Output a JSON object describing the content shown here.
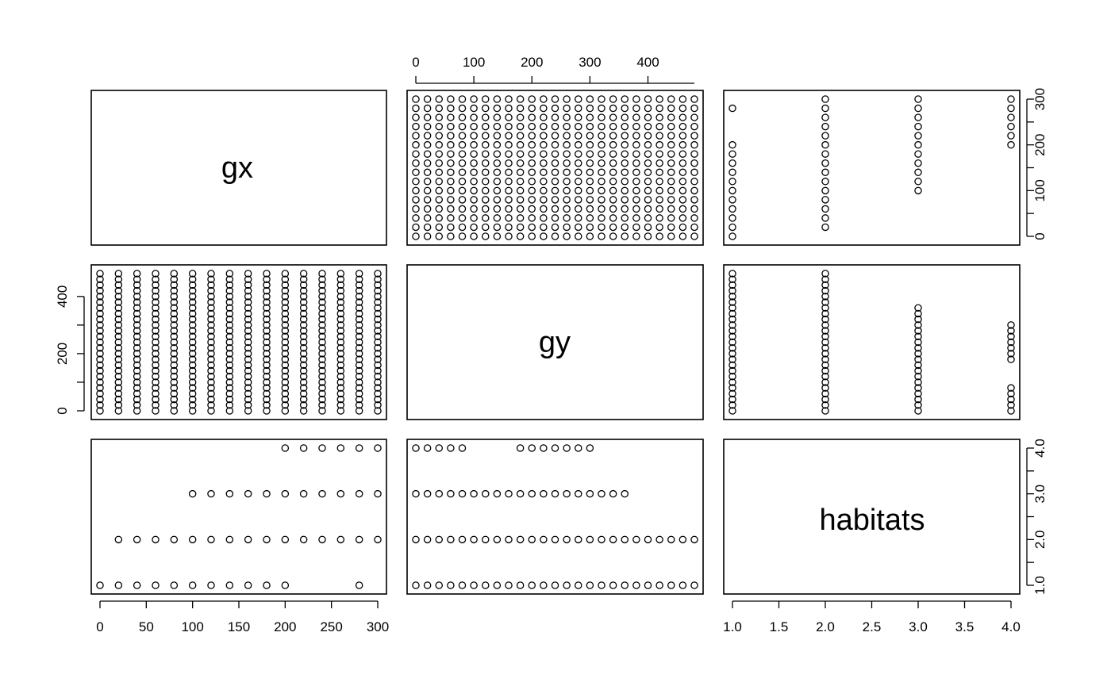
{
  "chart_data": {
    "type": "scatter",
    "variables": [
      "gx",
      "gy",
      "habitats"
    ],
    "ranges": {
      "gx": [
        0,
        300
      ],
      "gy": [
        0,
        480
      ],
      "habitats": [
        1,
        4
      ]
    },
    "ticks": {
      "gx": [
        "0",
        "50",
        "100",
        "150",
        "200",
        "250",
        "300"
      ],
      "gy": [
        "0",
        "100",
        "200",
        "300",
        "400"
      ],
      "gy_left": [
        "0",
        "200",
        "400"
      ],
      "habitats_bottom": [
        "1.0",
        "1.5",
        "2.0",
        "2.5",
        "3.0",
        "3.5",
        "4.0"
      ],
      "habitats_right": [
        "1.0",
        "2.0",
        "3.0",
        "4.0"
      ],
      "gx_right": [
        "0",
        "100",
        "200",
        "300"
      ]
    },
    "data": {
      "grid_gx": [
        0,
        20,
        40,
        60,
        80,
        100,
        120,
        140,
        160,
        180,
        200,
        220,
        240,
        260,
        280,
        300
      ],
      "grid_gy": [
        0,
        20,
        40,
        60,
        80,
        100,
        120,
        140,
        160,
        180,
        200,
        220,
        240,
        260,
        280,
        300,
        320,
        340,
        360,
        380,
        400,
        420,
        440,
        460,
        480
      ],
      "habitat_by_gx": [
        {
          "habitat": 1,
          "gx": [
            0,
            20,
            40,
            60,
            80,
            100,
            120,
            140,
            160,
            180,
            200,
            280
          ]
        },
        {
          "habitat": 2,
          "gx": [
            20,
            40,
            60,
            80,
            100,
            120,
            140,
            160,
            180,
            200,
            220,
            240,
            260,
            280,
            300
          ]
        },
        {
          "habitat": 3,
          "gx": [
            100,
            120,
            140,
            160,
            180,
            200,
            220,
            240,
            260,
            280,
            300
          ]
        },
        {
          "habitat": 4,
          "gx": [
            200,
            220,
            240,
            260,
            280,
            300
          ]
        }
      ],
      "habitat_by_gy": [
        {
          "habitat": 1,
          "gy": [
            0,
            20,
            40,
            60,
            80,
            100,
            120,
            140,
            160,
            180,
            200,
            220,
            240,
            260,
            280,
            300,
            320,
            340,
            360,
            380,
            400,
            420,
            440,
            460,
            480
          ]
        },
        {
          "habitat": 2,
          "gy": [
            0,
            20,
            40,
            60,
            80,
            100,
            120,
            140,
            160,
            180,
            200,
            220,
            240,
            260,
            280,
            300,
            320,
            340,
            360,
            380,
            400,
            420,
            440,
            460,
            480
          ]
        },
        {
          "habitat": 3,
          "gy": [
            0,
            20,
            40,
            60,
            80,
            100,
            120,
            140,
            160,
            180,
            200,
            220,
            240,
            260,
            280,
            300,
            320,
            340,
            360
          ]
        },
        {
          "habitat": 4,
          "gy": [
            0,
            20,
            40,
            60,
            80,
            180,
            200,
            220,
            240,
            260,
            280,
            300
          ]
        }
      ]
    },
    "grid": false,
    "legend": "none"
  }
}
